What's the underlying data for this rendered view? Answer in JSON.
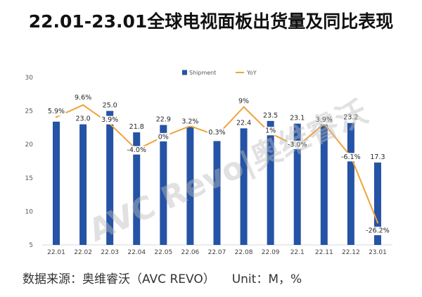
{
  "colors": {
    "shipment": "#2553a5",
    "yoy": "#f0a23b",
    "watermark": "#bdbdbd"
  },
  "watermark": "AVC Revo|奥维睿沃",
  "footer": {
    "source": "数据来源：奥维睿沃（AVC REVO）",
    "unit": "Unit：M，%"
  },
  "chart_data": {
    "type": "bar",
    "title": "22.01-23.01全球电视面板出货量及同比表现",
    "categories": [
      "22.01",
      "22.02",
      "22.03",
      "22.04",
      "22.05",
      "22.06",
      "22.07",
      "22.08",
      "22.09",
      "22.1",
      "22.11",
      "22.12",
      "23.01"
    ],
    "series": [
      {
        "name": "Shipment",
        "type": "bar",
        "axis": "primary",
        "values": [
          23.4,
          23.0,
          25.0,
          21.8,
          22.9,
          22.6,
          20.5,
          22.4,
          23.5,
          23.1,
          23.0,
          23.2,
          17.3
        ],
        "labels": [
          null,
          "23.0",
          "25.0",
          "21.8",
          "22.9",
          null,
          null,
          "22.4",
          "23.5",
          "23.1",
          null,
          "23.2",
          "17.3"
        ]
      },
      {
        "name": "YoY",
        "type": "line",
        "axis": "secondary",
        "values": [
          5.9,
          9.6,
          3.9,
          -4.0,
          0,
          3.2,
          0.3,
          9,
          1,
          -3.0,
          3.9,
          -6.1,
          -26.2
        ],
        "labels": [
          "5.9%",
          "9.6%",
          "3.9%",
          "-4.0%",
          "0%",
          "3.2%",
          "0.3%",
          "9%",
          "1%",
          "-3.0%",
          "3.9%",
          "-6.1%",
          "-26.2%"
        ]
      }
    ],
    "yticks": [
      5,
      10,
      15,
      20,
      25,
      30
    ],
    "ylim": [
      5,
      30
    ],
    "y2lim": [
      -33,
      18
    ],
    "legend": "top",
    "grid": false
  }
}
